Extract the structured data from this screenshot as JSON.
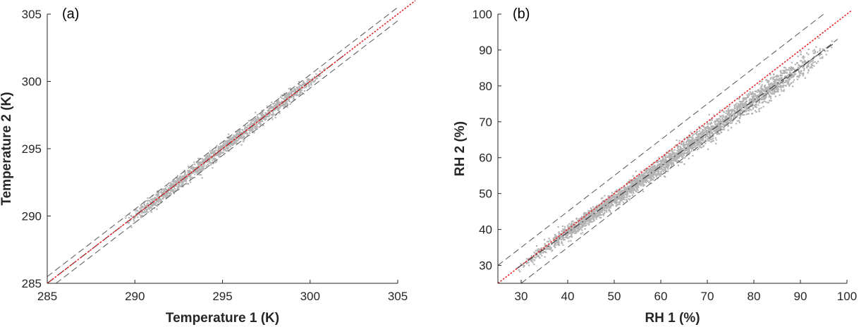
{
  "chart_data": [
    {
      "type": "scatter",
      "panel_label": "(a)",
      "xlabel": "Temperature 1 (K)",
      "ylabel": "Temperature 2 (K)",
      "xlim": [
        285,
        305
      ],
      "ylim": [
        285,
        305
      ],
      "xticks": [
        285,
        290,
        295,
        300,
        305
      ],
      "yticks": [
        285,
        290,
        295,
        300,
        305
      ],
      "grid": false,
      "colors": {
        "points": "#b3b3b3",
        "identity": "#e8262a",
        "bounds": "#555555",
        "fit": "#333333"
      },
      "point_cloud": {
        "x_range": [
          289,
          301
        ],
        "spread_y": 0.25,
        "offset_y": 0.0
      },
      "reference_lines": [
        {
          "style": "red-dotted",
          "slope": 1,
          "intercept": 0,
          "x": [
            285,
            306
          ]
        },
        {
          "style": "dashed",
          "slope": 1,
          "intercept": 0.5,
          "x": [
            285,
            305
          ]
        },
        {
          "style": "dashed",
          "slope": 1,
          "intercept": -0.5,
          "x": [
            285.5,
            305
          ]
        },
        {
          "style": "dash-dot",
          "slope": 1,
          "intercept": 0,
          "x": [
            285,
            302
          ]
        }
      ]
    },
    {
      "type": "scatter",
      "panel_label": "(b)",
      "xlabel": "RH 1 (%)",
      "ylabel": "RH 2 (%)",
      "xlim": [
        25,
        100
      ],
      "ylim": [
        25,
        100
      ],
      "xticks": [
        30,
        40,
        50,
        60,
        70,
        80,
        90,
        100
      ],
      "yticks": [
        30,
        40,
        50,
        60,
        70,
        80,
        90,
        100
      ],
      "grid": false,
      "colors": {
        "points": "#b3b3b3",
        "identity": "#e8262a",
        "bounds": "#555555",
        "fit": "#333333"
      },
      "point_cloud": {
        "x_range": [
          29,
          97
        ],
        "spread_y": 1.4,
        "offset_y": -2.5
      },
      "reference_lines": [
        {
          "style": "red-dotted",
          "slope": 1,
          "intercept": 0,
          "x": [
            25,
            101
          ]
        },
        {
          "style": "dashed",
          "slope": 1,
          "intercept": 5,
          "x": [
            25,
            95.5
          ]
        },
        {
          "style": "dashed",
          "slope": 1,
          "intercept": -5,
          "x": [
            30,
            98
          ]
        },
        {
          "style": "dash-dot",
          "slope": 0.92,
          "intercept": 2.4,
          "x": [
            29,
            97
          ]
        }
      ]
    }
  ]
}
